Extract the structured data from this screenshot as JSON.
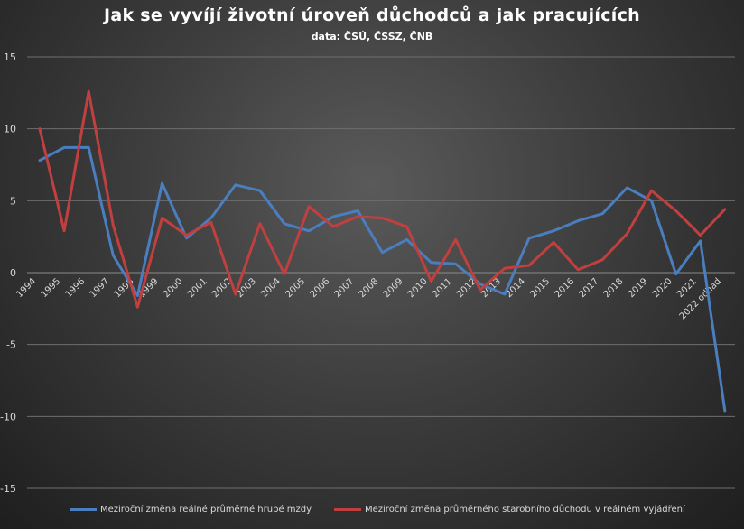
{
  "chart_data": {
    "type": "line",
    "title": "Jak se vyvíjí životní úroveň důchodců a jak pracujících",
    "subtitle": "data: ČSÚ, ČSSZ, ČNB",
    "categories": [
      "1994",
      "1995",
      "1996",
      "1997",
      "1998",
      "1999",
      "2000",
      "2001",
      "2002",
      "2003",
      "2004",
      "2005",
      "2006",
      "2007",
      "2008",
      "2009",
      "2010",
      "2011",
      "2012",
      "2013",
      "2014",
      "2015",
      "2016",
      "2017",
      "2018",
      "2019",
      "2020",
      "2021",
      "2022 odhad"
    ],
    "series": [
      {
        "name": "Meziroční změna reálné průměrné hrubé mzdy",
        "color": "#4a7ebf",
        "values": [
          7.8,
          8.7,
          8.7,
          1.2,
          -1.6,
          6.2,
          2.4,
          3.8,
          6.1,
          5.7,
          3.4,
          2.9,
          3.9,
          4.3,
          1.4,
          2.3,
          0.7,
          0.6,
          -0.8,
          -1.5,
          2.4,
          2.9,
          3.6,
          4.1,
          5.9,
          5.0,
          -0.1,
          2.2,
          -9.6
        ]
      },
      {
        "name": "Meziroční změna průměrného starobního důchodu v reálném vyjádření",
        "color": "#c0403f",
        "values": [
          10.0,
          2.9,
          12.6,
          3.3,
          -2.4,
          3.8,
          2.6,
          3.5,
          -1.5,
          3.4,
          -0.1,
          4.6,
          3.2,
          3.9,
          3.8,
          3.2,
          -0.6,
          2.3,
          -1.2,
          0.3,
          0.5,
          2.1,
          0.2,
          0.9,
          2.7,
          5.7,
          4.3,
          2.6,
          4.4
        ]
      }
    ],
    "ylim": [
      -15,
      15
    ],
    "yticks": [
      -15,
      -10,
      -5,
      0,
      5,
      10,
      15
    ],
    "ytick_labels": [
      "-15",
      "-10",
      "-5",
      "0",
      "5",
      "10",
      "15"
    ],
    "xlabel": "",
    "ylabel": "",
    "grid": true,
    "legend_position": "bottom"
  }
}
